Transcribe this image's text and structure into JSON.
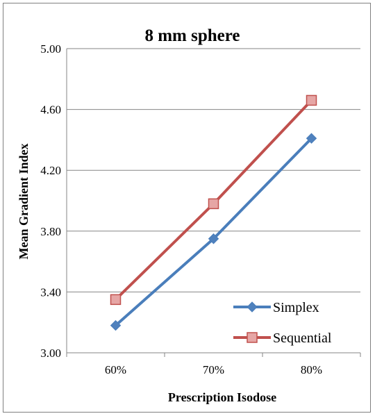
{
  "chart_data": {
    "type": "line",
    "title": "8 mm sphere",
    "xlabel": "Prescription Isodose",
    "ylabel": "Mean Gradient Index",
    "categories": [
      "60%",
      "70%",
      "80%"
    ],
    "ylim": [
      3.0,
      5.0
    ],
    "yticks": [
      "3.00",
      "3.40",
      "3.80",
      "4.20",
      "4.60",
      "5.00"
    ],
    "grid": true,
    "legend_position": "bottom-right",
    "series": [
      {
        "name": "Simplex",
        "values": [
          3.18,
          3.75,
          4.41
        ],
        "color": "#4a7ebb",
        "marker_color": "#4f81bd",
        "marker": "diamond"
      },
      {
        "name": "Sequential",
        "values": [
          3.35,
          3.98,
          4.66
        ],
        "color": "#c0504d",
        "marker_color": "#e6a6a5",
        "marker": "square"
      }
    ]
  }
}
